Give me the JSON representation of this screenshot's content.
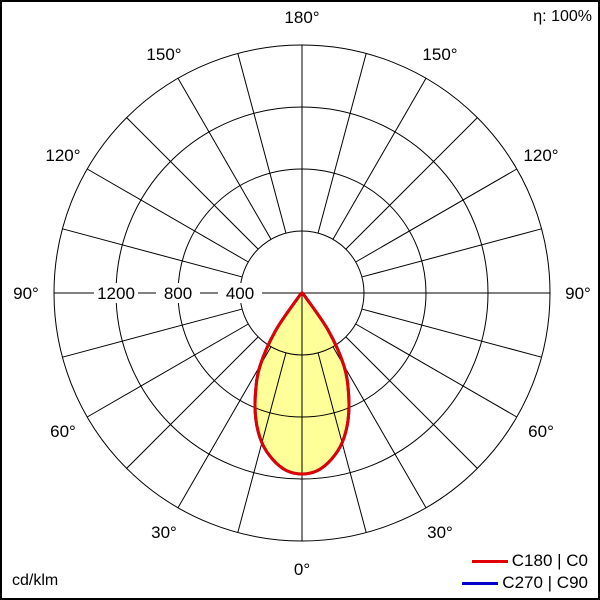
{
  "chart_data": {
    "type": "polar",
    "efficiency_label": "η: 100%",
    "unit_label": "cd/klm",
    "radial_ticks": [
      400,
      800,
      1200,
      1600
    ],
    "radial_tick_labels": [
      "400",
      "800",
      "1200"
    ],
    "rmax": 1600,
    "angle_step_deg": 15,
    "angle_labels": [
      {
        "angle": 0,
        "text": "0°"
      },
      {
        "angle": 30,
        "text": "30°"
      },
      {
        "angle": 60,
        "text": "60°"
      },
      {
        "angle": 90,
        "text": "90°"
      },
      {
        "angle": 120,
        "text": "120°"
      },
      {
        "angle": 150,
        "text": "150°"
      },
      {
        "angle": 180,
        "text": "180°"
      }
    ],
    "gamma": [
      0,
      5,
      10,
      15,
      20,
      25,
      30,
      35,
      40,
      45
    ],
    "series": [
      {
        "name": "C180 | C0",
        "color": "#e00000",
        "values": [
          1168,
          1150,
          1090,
          1000,
          870,
          710,
          540,
          300,
          40,
          0
        ]
      },
      {
        "name": "C270 | C90",
        "color": "#0000cc",
        "values": [
          1168,
          1150,
          1090,
          1000,
          870,
          710,
          540,
          300,
          40,
          0
        ]
      }
    ],
    "fill_color": "#ffff99"
  }
}
